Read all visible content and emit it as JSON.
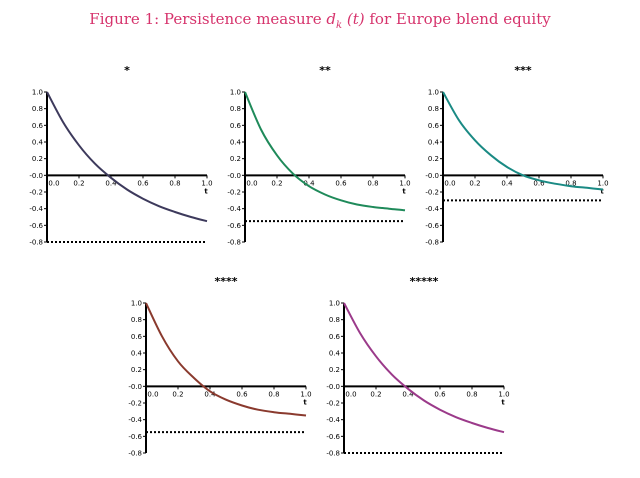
{
  "figure": {
    "title_prefix": "Figure 1: Persistence measure ",
    "title_math": "d",
    "title_sub": "k",
    "title_arg": " (t) ",
    "title_suffix": "for Europe blend equity"
  },
  "chart_data": [
    {
      "type": "line",
      "title": "*",
      "xlabel": "t",
      "xlim": [
        0,
        1
      ],
      "ylim": [
        -0.8,
        1.0
      ],
      "xticks": [
        "0.0",
        "0.2",
        "0.4",
        "0.6",
        "0.8",
        "1.0"
      ],
      "yticks": [
        "1.0",
        "0.8",
        "0.6",
        "0.4",
        "0.2",
        "-0.0",
        "-0.2",
        "-0.4",
        "-0.6",
        "-0.8"
      ],
      "color": "#3d3a5c",
      "asymptote": -0.8,
      "x": [
        0,
        0.1,
        0.2,
        0.3,
        0.4,
        0.5,
        0.6,
        0.7,
        0.8,
        0.9,
        1.0
      ],
      "y": [
        1.0,
        0.64,
        0.36,
        0.14,
        -0.03,
        -0.17,
        -0.28,
        -0.37,
        -0.44,
        -0.5,
        -0.55
      ]
    },
    {
      "type": "line",
      "title": "**",
      "xlabel": "t",
      "xlim": [
        0,
        1
      ],
      "ylim": [
        -0.8,
        1.0
      ],
      "xticks": [
        "0.0",
        "0.2",
        "0.4",
        "0.6",
        "0.8",
        "1.0"
      ],
      "yticks": [
        "1.0",
        "0.8",
        "0.6",
        "0.4",
        "0.2",
        "-0.0",
        "-0.2",
        "-0.4",
        "-0.6",
        "-0.8"
      ],
      "color": "#1f8a5a",
      "asymptote": -0.55,
      "x": [
        0,
        0.1,
        0.2,
        0.3,
        0.4,
        0.5,
        0.6,
        0.7,
        0.8,
        0.9,
        1.0
      ],
      "y": [
        1.0,
        0.55,
        0.24,
        0.02,
        -0.13,
        -0.23,
        -0.3,
        -0.35,
        -0.38,
        -0.4,
        -0.42
      ]
    },
    {
      "type": "line",
      "title": "***",
      "xlabel": "t",
      "xlim": [
        0,
        1
      ],
      "ylim": [
        -0.8,
        1.0
      ],
      "xticks": [
        "0.0",
        "0.2",
        "0.4",
        "0.6",
        "0.8",
        "1.0"
      ],
      "yticks": [
        "1.0",
        "0.8",
        "0.6",
        "0.4",
        "0.2",
        "-0.0",
        "-0.2",
        "-0.4",
        "-0.6",
        "-0.8"
      ],
      "color": "#1a8a84",
      "asymptote": -0.3,
      "x": [
        0,
        0.1,
        0.2,
        0.3,
        0.4,
        0.5,
        0.6,
        0.7,
        0.8,
        0.9,
        1.0
      ],
      "y": [
        1.0,
        0.66,
        0.42,
        0.24,
        0.1,
        0.0,
        -0.06,
        -0.1,
        -0.13,
        -0.15,
        -0.17
      ]
    },
    {
      "type": "line",
      "title": "****",
      "xlabel": "t",
      "xlim": [
        0,
        1
      ],
      "ylim": [
        -0.8,
        1.0
      ],
      "xticks": [
        "0.0",
        "0.2",
        "0.4",
        "0.6",
        "0.8",
        "1.0"
      ],
      "yticks": [
        "1.0",
        "0.8",
        "0.6",
        "0.4",
        "0.2",
        "-0.0",
        "-0.2",
        "-0.4",
        "-0.6",
        "-0.8"
      ],
      "color": "#8a3a2e",
      "asymptote": -0.55,
      "x": [
        0,
        0.1,
        0.2,
        0.3,
        0.4,
        0.5,
        0.6,
        0.7,
        0.8,
        0.9,
        1.0
      ],
      "y": [
        1.0,
        0.6,
        0.3,
        0.1,
        -0.06,
        -0.16,
        -0.23,
        -0.28,
        -0.31,
        -0.33,
        -0.35
      ]
    },
    {
      "type": "line",
      "title": "*****",
      "xlabel": "t",
      "xlim": [
        0,
        1
      ],
      "ylim": [
        -0.8,
        1.0
      ],
      "xticks": [
        "0.0",
        "0.2",
        "0.4",
        "0.6",
        "0.8",
        "1.0"
      ],
      "yticks": [
        "1.0",
        "0.8",
        "0.6",
        "0.4",
        "0.2",
        "-0.0",
        "-0.2",
        "-0.4",
        "-0.6",
        "-0.8"
      ],
      "color": "#9b3a8a",
      "asymptote": -0.8,
      "x": [
        0,
        0.1,
        0.2,
        0.3,
        0.4,
        0.5,
        0.6,
        0.7,
        0.8,
        0.9,
        1.0
      ],
      "y": [
        1.0,
        0.64,
        0.36,
        0.14,
        -0.03,
        -0.17,
        -0.28,
        -0.37,
        -0.44,
        -0.5,
        -0.55
      ]
    }
  ]
}
